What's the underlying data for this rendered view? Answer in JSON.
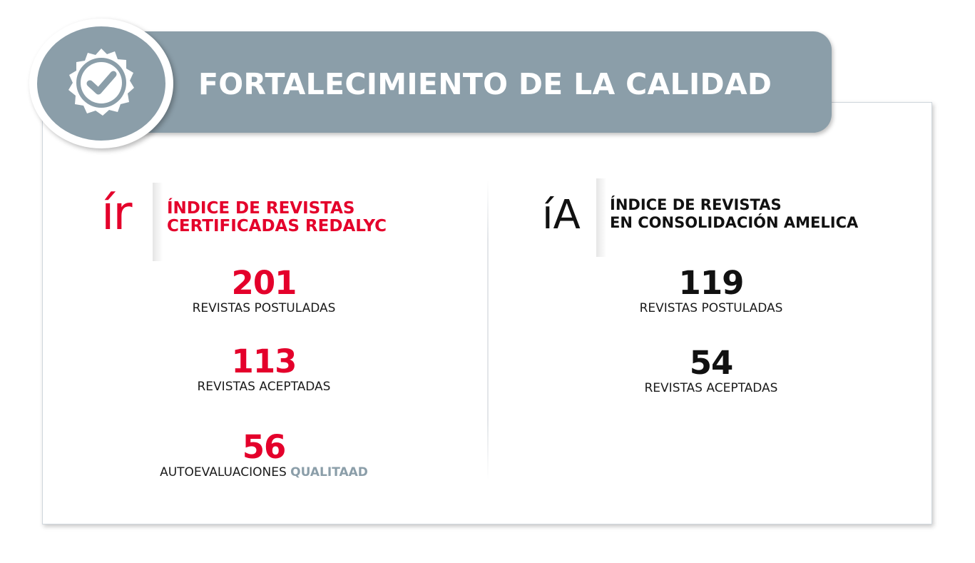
{
  "header": {
    "title": "FORTALECIMIENTO DE LA CALIDAD",
    "icon": "check-seal-icon"
  },
  "colors": {
    "banner": "#8b9ea9",
    "accent_red": "#e4002b",
    "text_dark": "#111111"
  },
  "left_index": {
    "logo": "ír",
    "title_line1": "ÍNDICE DE REVISTAS",
    "title_line2": "CERTIFICADAS REDALYC",
    "stats": [
      {
        "value": "201",
        "label": "REVISTAS POSTULADAS"
      },
      {
        "value": "113",
        "label": "REVISTAS ACEPTADAS"
      },
      {
        "value": "56",
        "label": "AUTOEVALUACIONES",
        "label_accent": "QUALITAAD"
      }
    ]
  },
  "right_index": {
    "logo": "íA",
    "title_line1": "ÍNDICE DE REVISTAS",
    "title_line2": "EN CONSOLIDACIÓN AMELICA",
    "stats": [
      {
        "value": "119",
        "label": "REVISTAS POSTULADAS"
      },
      {
        "value": "54",
        "label": "REVISTAS ACEPTADAS"
      }
    ]
  }
}
